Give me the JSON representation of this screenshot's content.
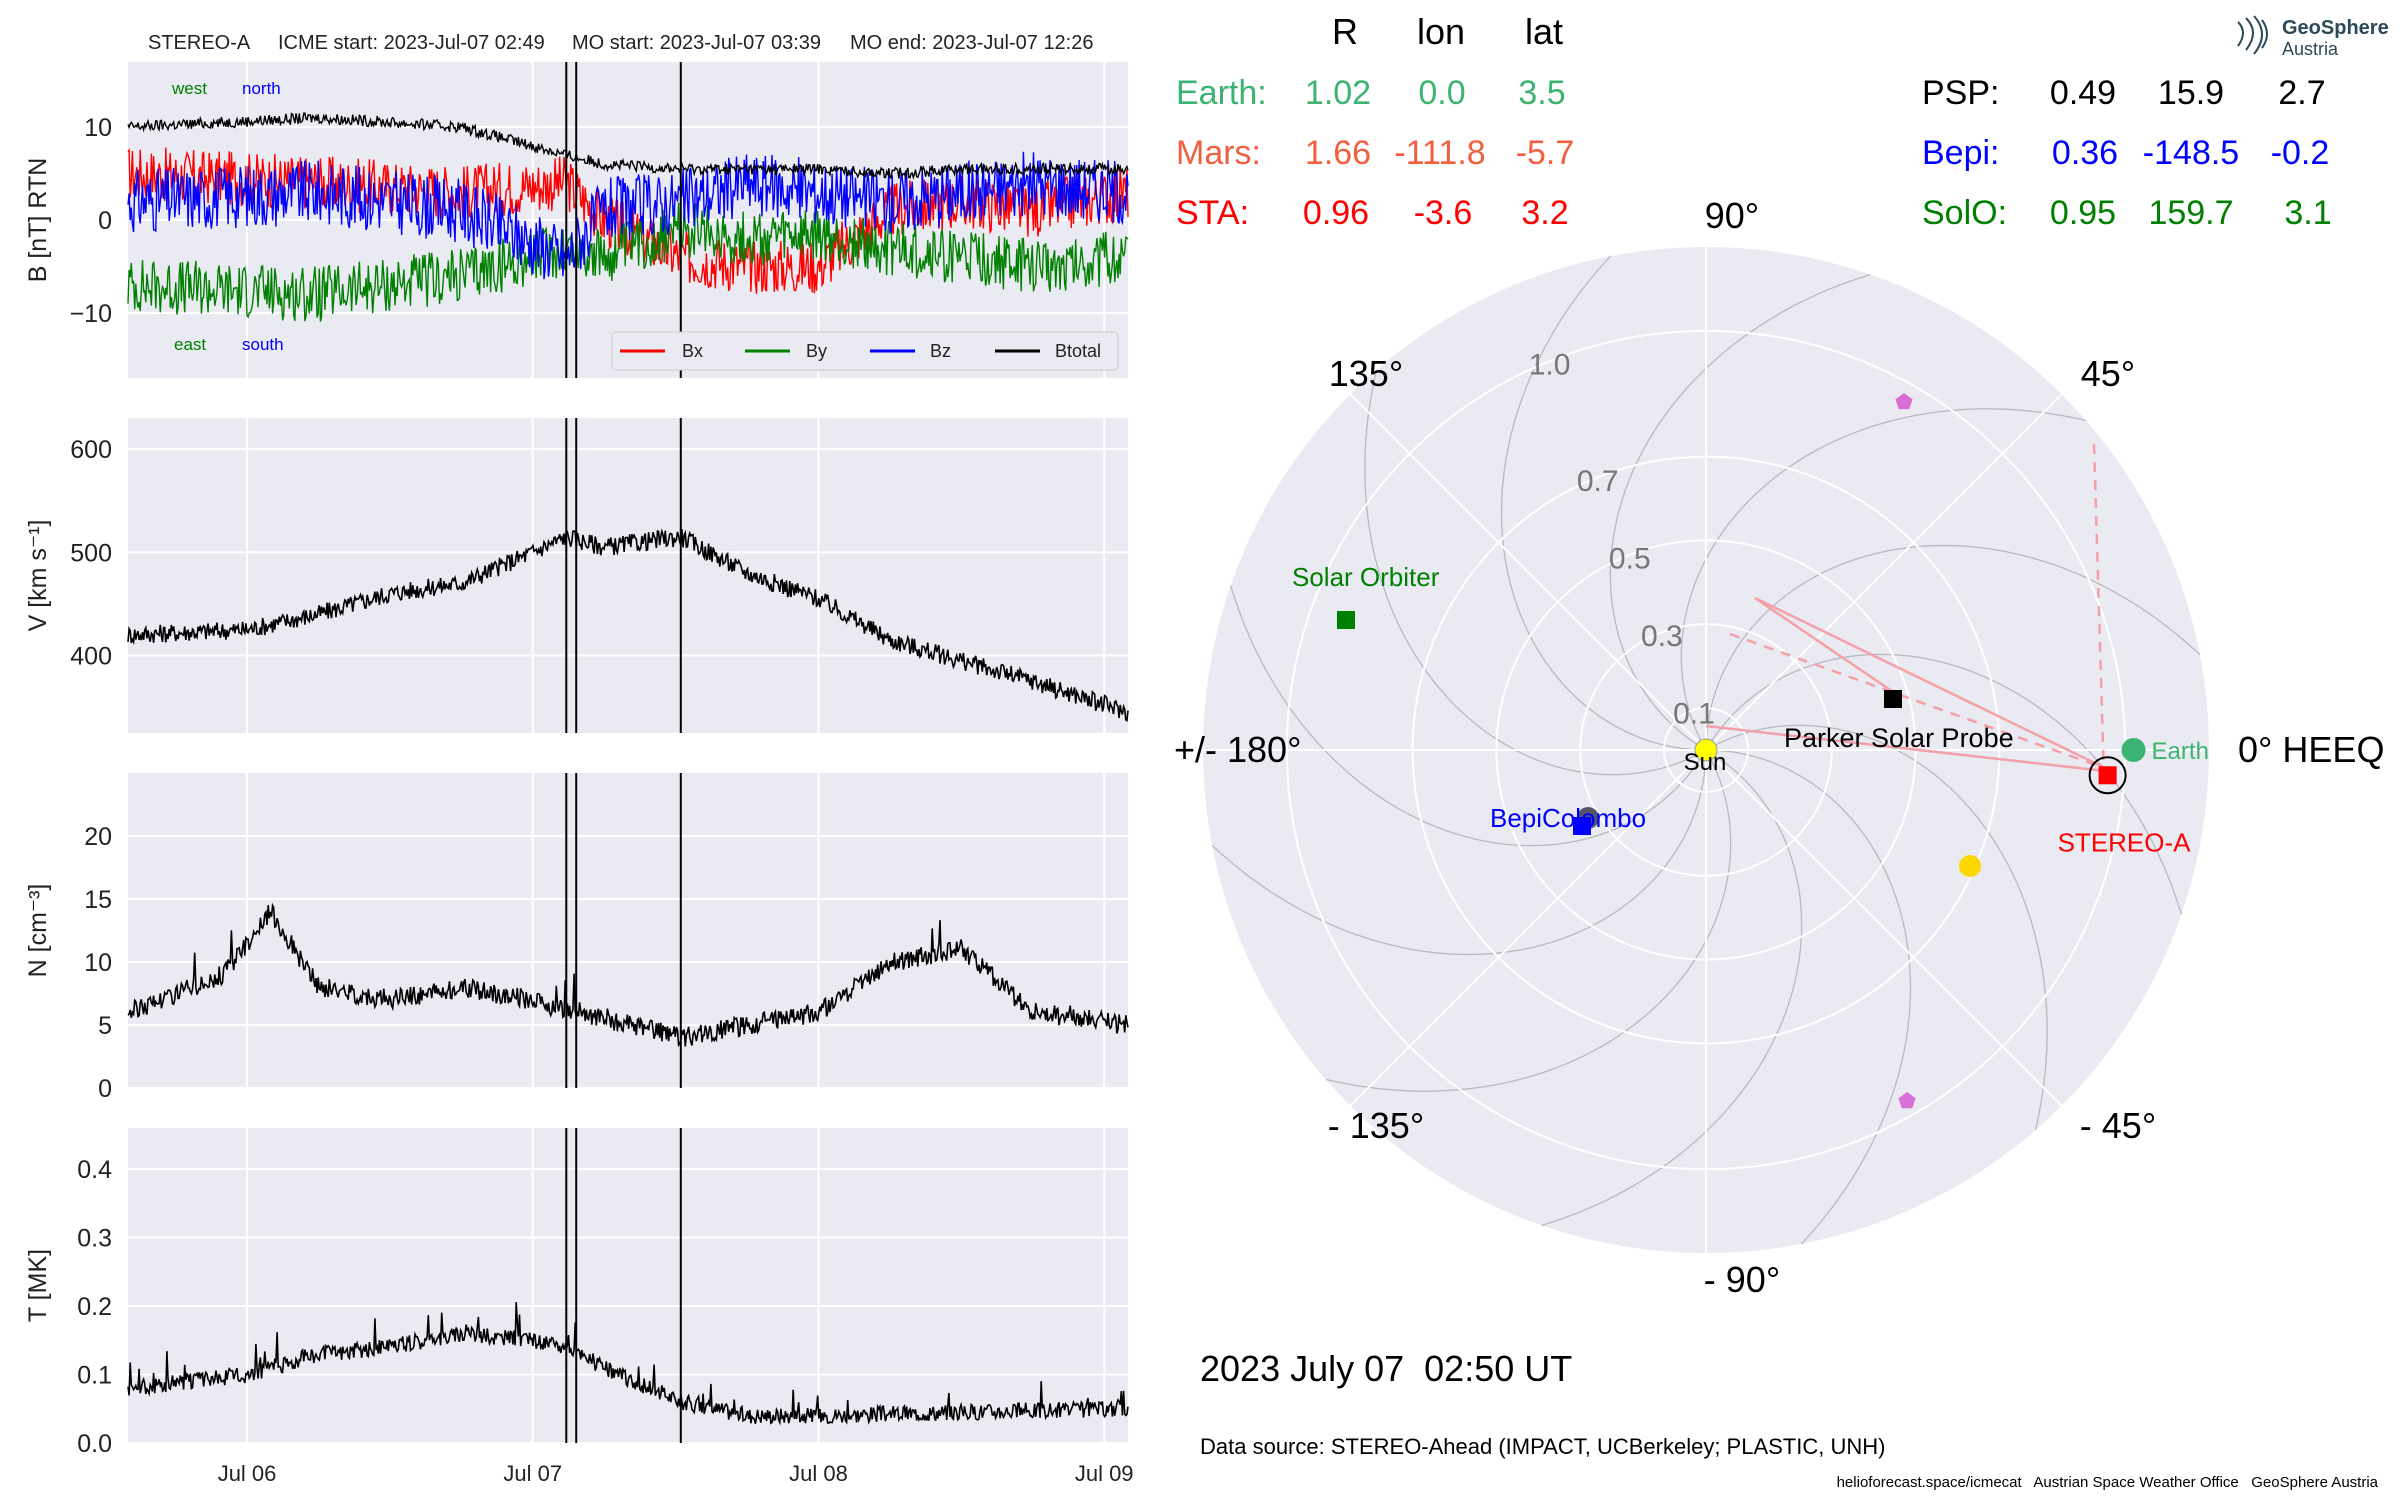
{
  "header": {
    "spacecraft": "STEREO-A",
    "icme_start": "ICME start: 2023-Jul-07 02:49",
    "mo_start": "MO start: 2023-Jul-07 03:39",
    "mo_end": "MO end: 2023-Jul-07 12:26"
  },
  "colors": {
    "bx": "#ff0000",
    "by": "#008000",
    "bz": "#0000ff",
    "btotal": "#000000",
    "panel_bg": "#eaeaf2",
    "earth": "#3cb371",
    "mars": "#f06040",
    "sta": "#ff0000",
    "psp": "#000000",
    "bepi": "#0000ff",
    "solo": "#008000"
  },
  "chart_data": [
    {
      "type": "line",
      "panel": "B",
      "ylabel": "B [nT] RTN",
      "ylim": [
        -17,
        17
      ],
      "yticks": [
        "10",
        "0",
        "−10"
      ],
      "annotations": {
        "west": "west",
        "north": "north",
        "east": "east",
        "south": "south"
      },
      "legend": [
        "Bx",
        "By",
        "Bz",
        "Btotal"
      ],
      "legend_position": "lower-right",
      "x_days": [
        "2023-07-05 14:00",
        "2023-07-06 06:00",
        "2023-07-06 18:00",
        "2023-07-07 02:49",
        "2023-07-07 06:00",
        "2023-07-07 12:26",
        "2023-07-07 18:00",
        "2023-07-08 00:00",
        "2023-07-08 06:00",
        "2023-07-08 12:00",
        "2023-07-08 18:00",
        "2023-07-09 02:00"
      ],
      "series": [
        {
          "name": "Bx",
          "values": [
            5,
            4,
            3,
            4,
            0,
            -4,
            -5,
            -5,
            1,
            2,
            1,
            3
          ]
        },
        {
          "name": "By",
          "values": [
            -7,
            -8,
            -6,
            -3,
            -4,
            -1,
            -2,
            -2,
            -3,
            -4,
            -5,
            -4
          ]
        },
        {
          "name": "Bz",
          "values": [
            2,
            3,
            1,
            -4,
            1,
            2,
            4,
            3,
            2,
            3,
            4,
            3
          ]
        },
        {
          "name": "Btotal",
          "values": [
            10,
            11,
            10,
            7,
            6,
            5.5,
            5.5,
            5.5,
            5,
            5.5,
            5.5,
            5.5
          ]
        }
      ]
    },
    {
      "type": "line",
      "panel": "V",
      "ylabel": "V [km s⁻¹]",
      "ylim": [
        325,
        630
      ],
      "yticks": [
        "600",
        "500",
        "400"
      ],
      "x_days": [
        "2023-07-05 14:00",
        "2023-07-06 00:00",
        "2023-07-06 06:00",
        "2023-07-06 12:00",
        "2023-07-06 18:00",
        "2023-07-07 00:00",
        "2023-07-07 02:49",
        "2023-07-07 06:00",
        "2023-07-07 12:26",
        "2023-07-07 18:00",
        "2023-07-08 00:00",
        "2023-07-08 06:00",
        "2023-07-08 12:00",
        "2023-07-08 18:00",
        "2023-07-09 02:00"
      ],
      "series": [
        {
          "name": "V",
          "values": [
            420,
            425,
            440,
            460,
            470,
            500,
            515,
            505,
            515,
            480,
            455,
            415,
            395,
            375,
            345
          ]
        }
      ]
    },
    {
      "type": "line",
      "panel": "N",
      "ylabel": "N [cm⁻³]",
      "ylim": [
        0,
        25
      ],
      "yticks": [
        "20",
        "15",
        "10",
        "5",
        "0"
      ],
      "x_days": [
        "2023-07-05 14:00",
        "2023-07-05 22:00",
        "2023-07-06 02:00",
        "2023-07-06 06:00",
        "2023-07-06 12:00",
        "2023-07-06 18:00",
        "2023-07-07 00:00",
        "2023-07-07 02:49",
        "2023-07-07 06:00",
        "2023-07-07 12:26",
        "2023-07-07 18:00",
        "2023-07-08 00:00",
        "2023-07-08 06:00",
        "2023-07-08 12:00",
        "2023-07-08 18:00",
        "2023-07-09 02:00"
      ],
      "series": [
        {
          "name": "N",
          "values": [
            6,
            9,
            14,
            8,
            7,
            8,
            7,
            6,
            5.5,
            4,
            5,
            6,
            10,
            11,
            6,
            5
          ]
        }
      ]
    },
    {
      "type": "line",
      "panel": "T",
      "ylabel": "T [MK]",
      "ylim": [
        0,
        0.46
      ],
      "yticks": [
        "0.4",
        "0.3",
        "0.2",
        "0.1",
        "0.0"
      ],
      "xticks": [
        "Jul 06",
        "Jul 07",
        "Jul 08",
        "Jul 09"
      ],
      "x_days": [
        "2023-07-05 14:00",
        "2023-07-06 00:00",
        "2023-07-06 06:00",
        "2023-07-06 12:00",
        "2023-07-06 18:00",
        "2023-07-07 00:00",
        "2023-07-07 02:49",
        "2023-07-07 06:00",
        "2023-07-07 12:26",
        "2023-07-07 18:00",
        "2023-07-08 00:00",
        "2023-07-08 12:00",
        "2023-07-09 02:00"
      ],
      "series": [
        {
          "name": "T",
          "values": [
            0.08,
            0.1,
            0.13,
            0.14,
            0.16,
            0.15,
            0.14,
            0.11,
            0.06,
            0.04,
            0.04,
            0.045,
            0.05
          ]
        }
      ]
    }
  ],
  "event_lines": [
    "2023-07-07 02:49",
    "2023-07-07 03:39",
    "2023-07-07 12:26"
  ],
  "positions_table": {
    "headers": [
      "R",
      "lon",
      "lat"
    ],
    "left": [
      {
        "label": "Earth:",
        "R": "1.02",
        "lon": "0.0",
        "lat": "3.5"
      },
      {
        "label": "Mars:",
        "R": "1.66",
        "lon": "-111.8",
        "lat": "-5.7"
      },
      {
        "label": "STA:",
        "R": "0.96",
        "lon": "-3.6",
        "lat": "3.2"
      }
    ],
    "right": [
      {
        "label": "PSP:",
        "R": "0.49",
        "lon": "15.9",
        "lat": "2.7"
      },
      {
        "label": "Bepi:",
        "R": "0.36",
        "lon": "-148.5",
        "lat": "-0.2"
      },
      {
        "label": "SolO:",
        "R": "0.95",
        "lon": "159.7",
        "lat": "3.1"
      }
    ]
  },
  "polar_plot": {
    "angle_labels": {
      "a90": "90°",
      "a45": "45°",
      "a135": "135°",
      "a0": "0° HEEQ",
      "a180": "+/- 180°",
      "an45": "- 45°",
      "an135": "- 135°",
      "an90": "- 90°"
    },
    "radial_labels": [
      "1.0",
      "0.7",
      "0.5",
      "0.3",
      "0.1"
    ],
    "radial_values": [
      1.0,
      0.7,
      0.5,
      0.3,
      0.1
    ],
    "bodies": [
      {
        "name": "Sun",
        "label": "Sun",
        "r": 0,
        "lon": 0
      },
      {
        "name": "Earth",
        "label": "Earth",
        "r": 1.02,
        "lon": 0
      },
      {
        "name": "STEREO-A",
        "label": "STEREO-A",
        "r": 0.96,
        "lon": -3.6
      },
      {
        "name": "Parker Solar Probe",
        "label": "Parker Solar Probe",
        "r": 0.49,
        "lon": 15.9
      },
      {
        "name": "BepiColombo",
        "label": "BepiColombo",
        "r": 0.36,
        "lon": -148.5
      },
      {
        "name": "Solar Orbiter",
        "label": "Solar Orbiter",
        "r": 0.95,
        "lon": 159.7
      }
    ]
  },
  "timestamp": "2023 July 07  02:50 UT",
  "data_source": "Data source: STEREO-Ahead (IMPACT, UCBerkeley; PLASTIC, UNH)",
  "footer": "helioforecast.space/icmecat   Austrian Space Weather Office   GeoSphere Austria",
  "logo": {
    "line1": "GeoSphere",
    "line2": "Austria"
  }
}
